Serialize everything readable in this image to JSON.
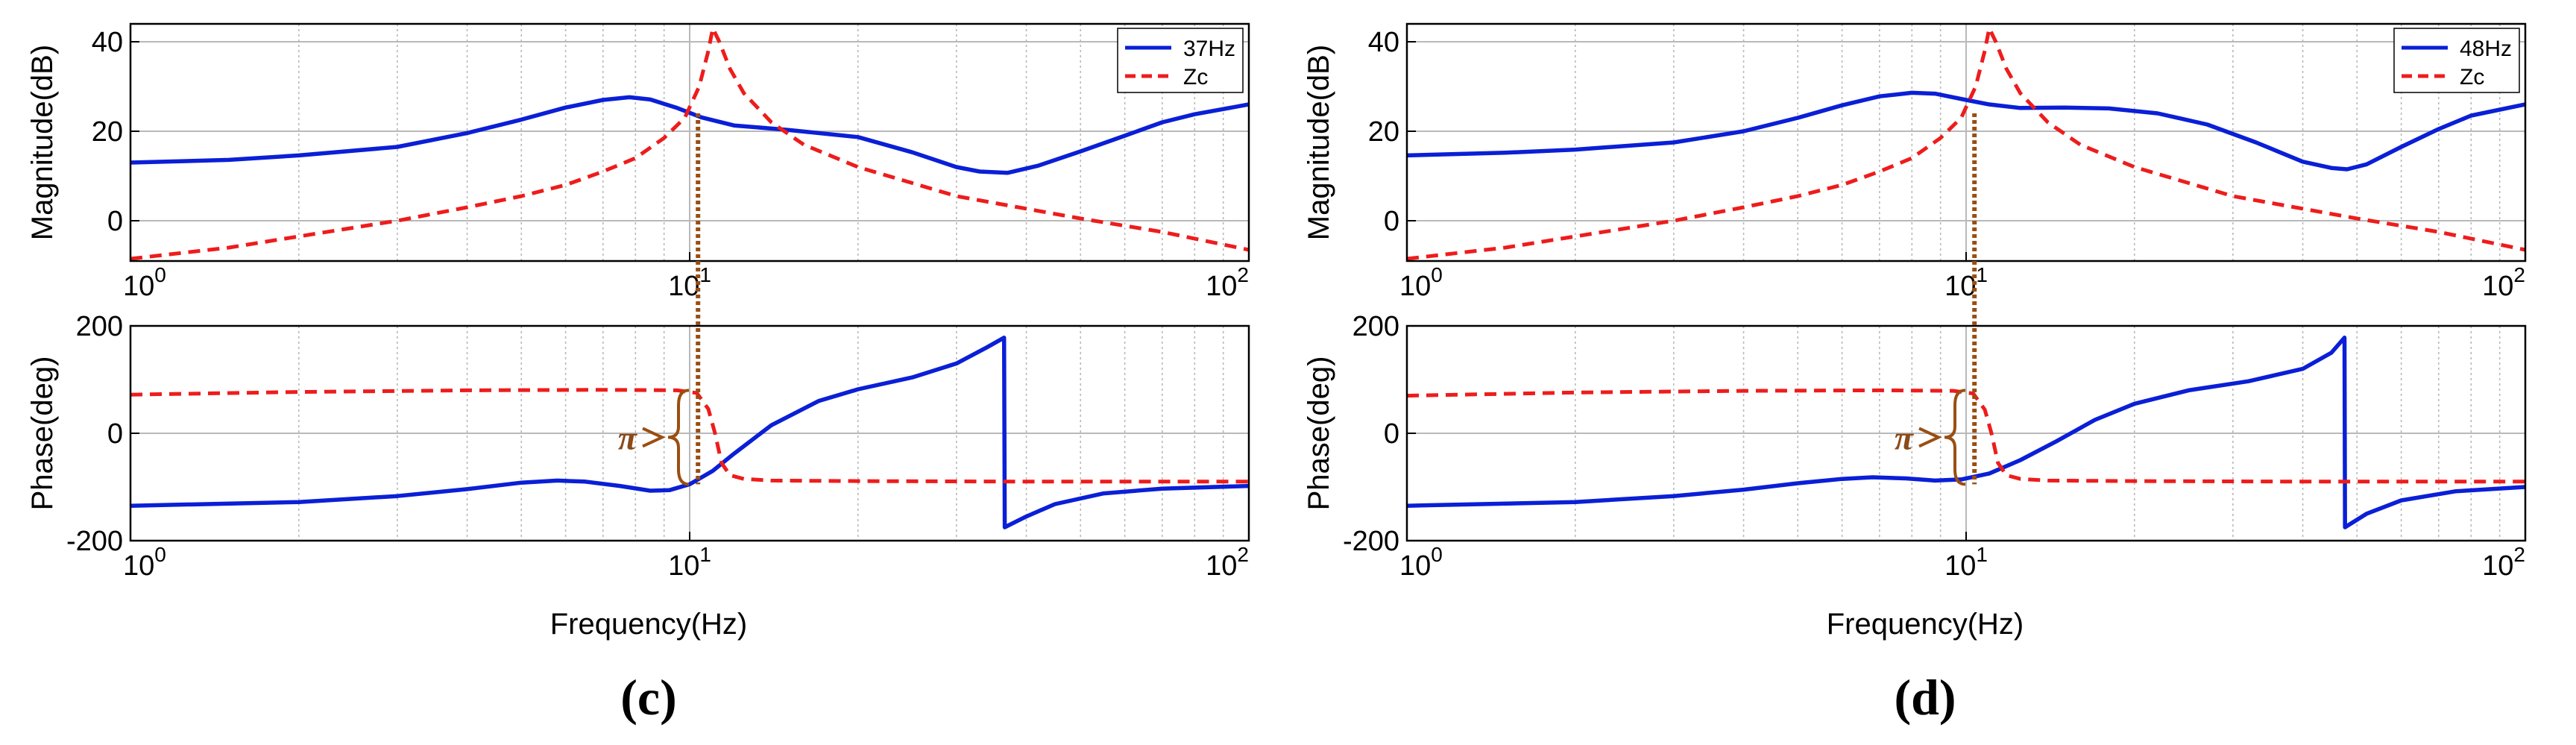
{
  "colors": {
    "blue": "#0a1fd6",
    "red": "#ee1c1c",
    "brown": "#9a4e12",
    "grid": "#b9b9b9"
  },
  "chart_data": [
    {
      "panel_label": "(c)",
      "type": "line",
      "x_scale": "log",
      "xlim": [
        1,
        100
      ],
      "x_ticks": [
        "10^0",
        "10^1",
        "10^2"
      ],
      "xlabel": "Frequency(Hz)",
      "annotation": "π",
      "subplots": [
        {
          "ylabel": "Magnitude(dB)",
          "ylim": [
            -9,
            44
          ],
          "y_ticks": [
            0,
            20,
            40
          ],
          "legend": "top-right",
          "series": [
            {
              "name": "37Hz",
              "style": "solid",
              "color": "blue",
              "x": [
                1,
                1.5,
                2,
                3,
                4,
                5,
                6,
                7,
                7.8,
                8.5,
                9.5,
                10.5,
                12,
                15,
                20,
                25,
                30,
                33,
                37,
                42,
                50,
                60,
                70,
                80,
                100
              ],
              "y": [
                13,
                13.6,
                14.6,
                16.5,
                19.6,
                22.6,
                25.3,
                27,
                27.6,
                27.1,
                25.2,
                23.1,
                21.3,
                20.3,
                18.7,
                15.3,
                12,
                11,
                10.7,
                12.3,
                15.5,
                19,
                22,
                23.8,
                26
              ]
            },
            {
              "name": "Zc",
              "style": "dashed",
              "color": "red",
              "x": [
                1,
                1.5,
                2,
                3,
                4,
                5,
                6,
                7,
                8,
                9,
                9.8,
                10.4,
                10.8,
                11,
                11.3,
                11.8,
                12.5,
                14,
                16,
                20,
                30,
                50,
                70,
                100
              ],
              "y": [
                -8.5,
                -6,
                -3.5,
                0,
                3,
                5.5,
                8,
                11,
                14,
                18.5,
                23,
                30,
                38,
                43,
                40,
                34,
                28.5,
                22,
                17,
                12,
                5.5,
                0.5,
                -2.5,
                -6.5
              ]
            }
          ]
        },
        {
          "ylabel": "Phase(deg)",
          "ylim": [
            -200,
            200
          ],
          "y_ticks": [
            -200,
            0,
            200
          ],
          "series": [
            {
              "name": "37Hz",
              "style": "solid",
              "color": "blue",
              "x": [
                1,
                2,
                3,
                4,
                5,
                5.8,
                6.5,
                7.5,
                8.5,
                9.2,
                10,
                11,
                12,
                14,
                17,
                20,
                25,
                30,
                34,
                36.5,
                36.6,
                40,
                45,
                55,
                70,
                100
              ],
              "y": [
                -135,
                -128,
                -117,
                -104,
                -92,
                -88,
                -90,
                -98,
                -107,
                -106,
                -95,
                -70,
                -38,
                15,
                60,
                82,
                104,
                130,
                160,
                178,
                -175,
                -155,
                -132,
                -112,
                -103,
                -98
              ]
            },
            {
              "name": "Zc",
              "style": "dashed",
              "color": "red",
              "x": [
                1,
                2,
                4,
                7,
                9.5,
                10.3,
                10.8,
                11.1,
                11.4,
                11.8,
                12.5,
                14,
                20,
                40,
                100
              ],
              "y": [
                72,
                77,
                80,
                81,
                80,
                75,
                45,
                0,
                -55,
                -78,
                -85,
                -88,
                -89,
                -90,
                -90
              ]
            }
          ]
        }
      ]
    },
    {
      "panel_label": "(d)",
      "type": "line",
      "x_scale": "log",
      "xlim": [
        1,
        100
      ],
      "x_ticks": [
        "10^0",
        "10^1",
        "10^2"
      ],
      "xlabel": "Frequency(Hz)",
      "annotation": "π",
      "subplots": [
        {
          "ylabel": "Magnitude(dB)",
          "ylim": [
            -9,
            44
          ],
          "y_ticks": [
            0,
            20,
            40
          ],
          "legend": "top-right",
          "series": [
            {
              "name": "48Hz",
              "style": "solid",
              "color": "blue",
              "x": [
                1,
                1.5,
                2,
                3,
                4,
                5,
                6,
                7,
                8,
                8.8,
                10,
                11,
                12.5,
                15,
                18,
                22,
                27,
                33,
                40,
                45,
                48,
                52,
                60,
                70,
                80,
                100
              ],
              "y": [
                14.6,
                15.2,
                15.9,
                17.5,
                20,
                23,
                25.8,
                27.8,
                28.6,
                28.4,
                27,
                26,
                25.2,
                25.3,
                25.1,
                24,
                21.5,
                17.5,
                13.2,
                11.8,
                11.5,
                12.6,
                16.5,
                20.5,
                23.5,
                26
              ]
            },
            {
              "name": "Zc",
              "style": "dashed",
              "color": "red",
              "x": [
                1,
                1.5,
                2,
                3,
                4,
                5,
                6,
                7,
                8,
                9,
                9.8,
                10.4,
                10.8,
                11,
                11.3,
                11.8,
                12.5,
                14,
                16,
                20,
                30,
                50,
                70,
                100
              ],
              "y": [
                -8.5,
                -6,
                -3.5,
                0,
                3,
                5.5,
                8,
                11,
                14,
                18.5,
                23,
                30,
                38,
                43,
                40,
                34,
                28.5,
                22,
                17,
                12,
                5.5,
                0.5,
                -2.5,
                -6.5
              ]
            }
          ]
        },
        {
          "ylabel": "Phase(deg)",
          "ylim": [
            -200,
            200
          ],
          "y_ticks": [
            -200,
            0,
            200
          ],
          "series": [
            {
              "name": "48Hz",
              "style": "solid",
              "color": "blue",
              "x": [
                1,
                2,
                3,
                4,
                5,
                6,
                6.8,
                7.8,
                8.8,
                9.8,
                11,
                12.5,
                14.5,
                17,
                20,
                25,
                32,
                40,
                45,
                47.5,
                47.6,
                52,
                60,
                75,
                100
              ],
              "y": [
                -135,
                -128,
                -117,
                -105,
                -93,
                -85,
                -82,
                -84,
                -88,
                -86,
                -75,
                -50,
                -15,
                25,
                55,
                80,
                97,
                120,
                150,
                178,
                -175,
                -150,
                -125,
                -108,
                -100
              ]
            },
            {
              "name": "Zc",
              "style": "dashed",
              "color": "red",
              "x": [
                1,
                2,
                4,
                7,
                9.5,
                10.3,
                10.8,
                11.1,
                11.4,
                11.8,
                12.5,
                14,
                20,
                40,
                100
              ],
              "y": [
                70,
                76,
                79,
                80,
                79,
                74,
                44,
                0,
                -55,
                -78,
                -85,
                -88,
                -89,
                -90,
                -90
              ]
            }
          ]
        }
      ]
    }
  ]
}
